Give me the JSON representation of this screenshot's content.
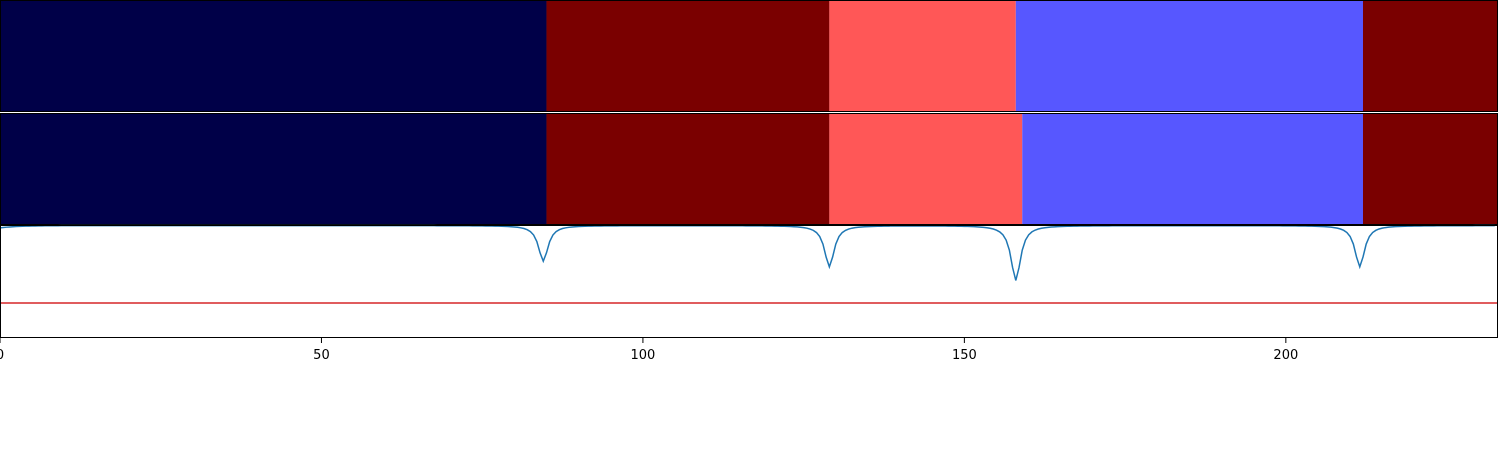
{
  "chart_data": [
    {
      "type": "heatmap",
      "title": "",
      "xlim": [
        0,
        233
      ],
      "segments": [
        {
          "start": 0,
          "end": 85,
          "color": "#000048"
        },
        {
          "start": 85,
          "end": 129,
          "color": "#7a0000"
        },
        {
          "start": 129,
          "end": 158,
          "color": "#ff5757"
        },
        {
          "start": 158,
          "end": 212,
          "color": "#5757ff"
        },
        {
          "start": 212,
          "end": 233,
          "color": "#7a0000"
        }
      ]
    },
    {
      "type": "heatmap",
      "title": "",
      "xlim": [
        0,
        233
      ],
      "segments": [
        {
          "start": 0,
          "end": 85,
          "color": "#000048"
        },
        {
          "start": 85,
          "end": 129,
          "color": "#7a0000"
        },
        {
          "start": 129,
          "end": 159,
          "color": "#ff5757"
        },
        {
          "start": 159,
          "end": 212,
          "color": "#5757ff"
        },
        {
          "start": 212,
          "end": 233,
          "color": "#7a0000"
        }
      ]
    },
    {
      "type": "line",
      "title": "",
      "xlabel": "",
      "ylabel": "",
      "xlim": [
        0,
        233
      ],
      "ylim": [
        0,
        1
      ],
      "grid": false,
      "xticks": [
        0,
        50,
        100,
        150,
        200
      ],
      "xtick_labels": [
        "0",
        "50",
        "100",
        "150",
        "200"
      ],
      "threshold": {
        "value": 0.31,
        "color": "#d62728"
      },
      "series": [
        {
          "color": "#1f77b4",
          "dips": [
            {
              "x": 84.5,
              "min": 0.68
            },
            {
              "x": 129,
              "min": 0.63
            },
            {
              "x": 158,
              "min": 0.51
            },
            {
              "x": 211.5,
              "min": 0.63
            }
          ]
        }
      ]
    }
  ]
}
